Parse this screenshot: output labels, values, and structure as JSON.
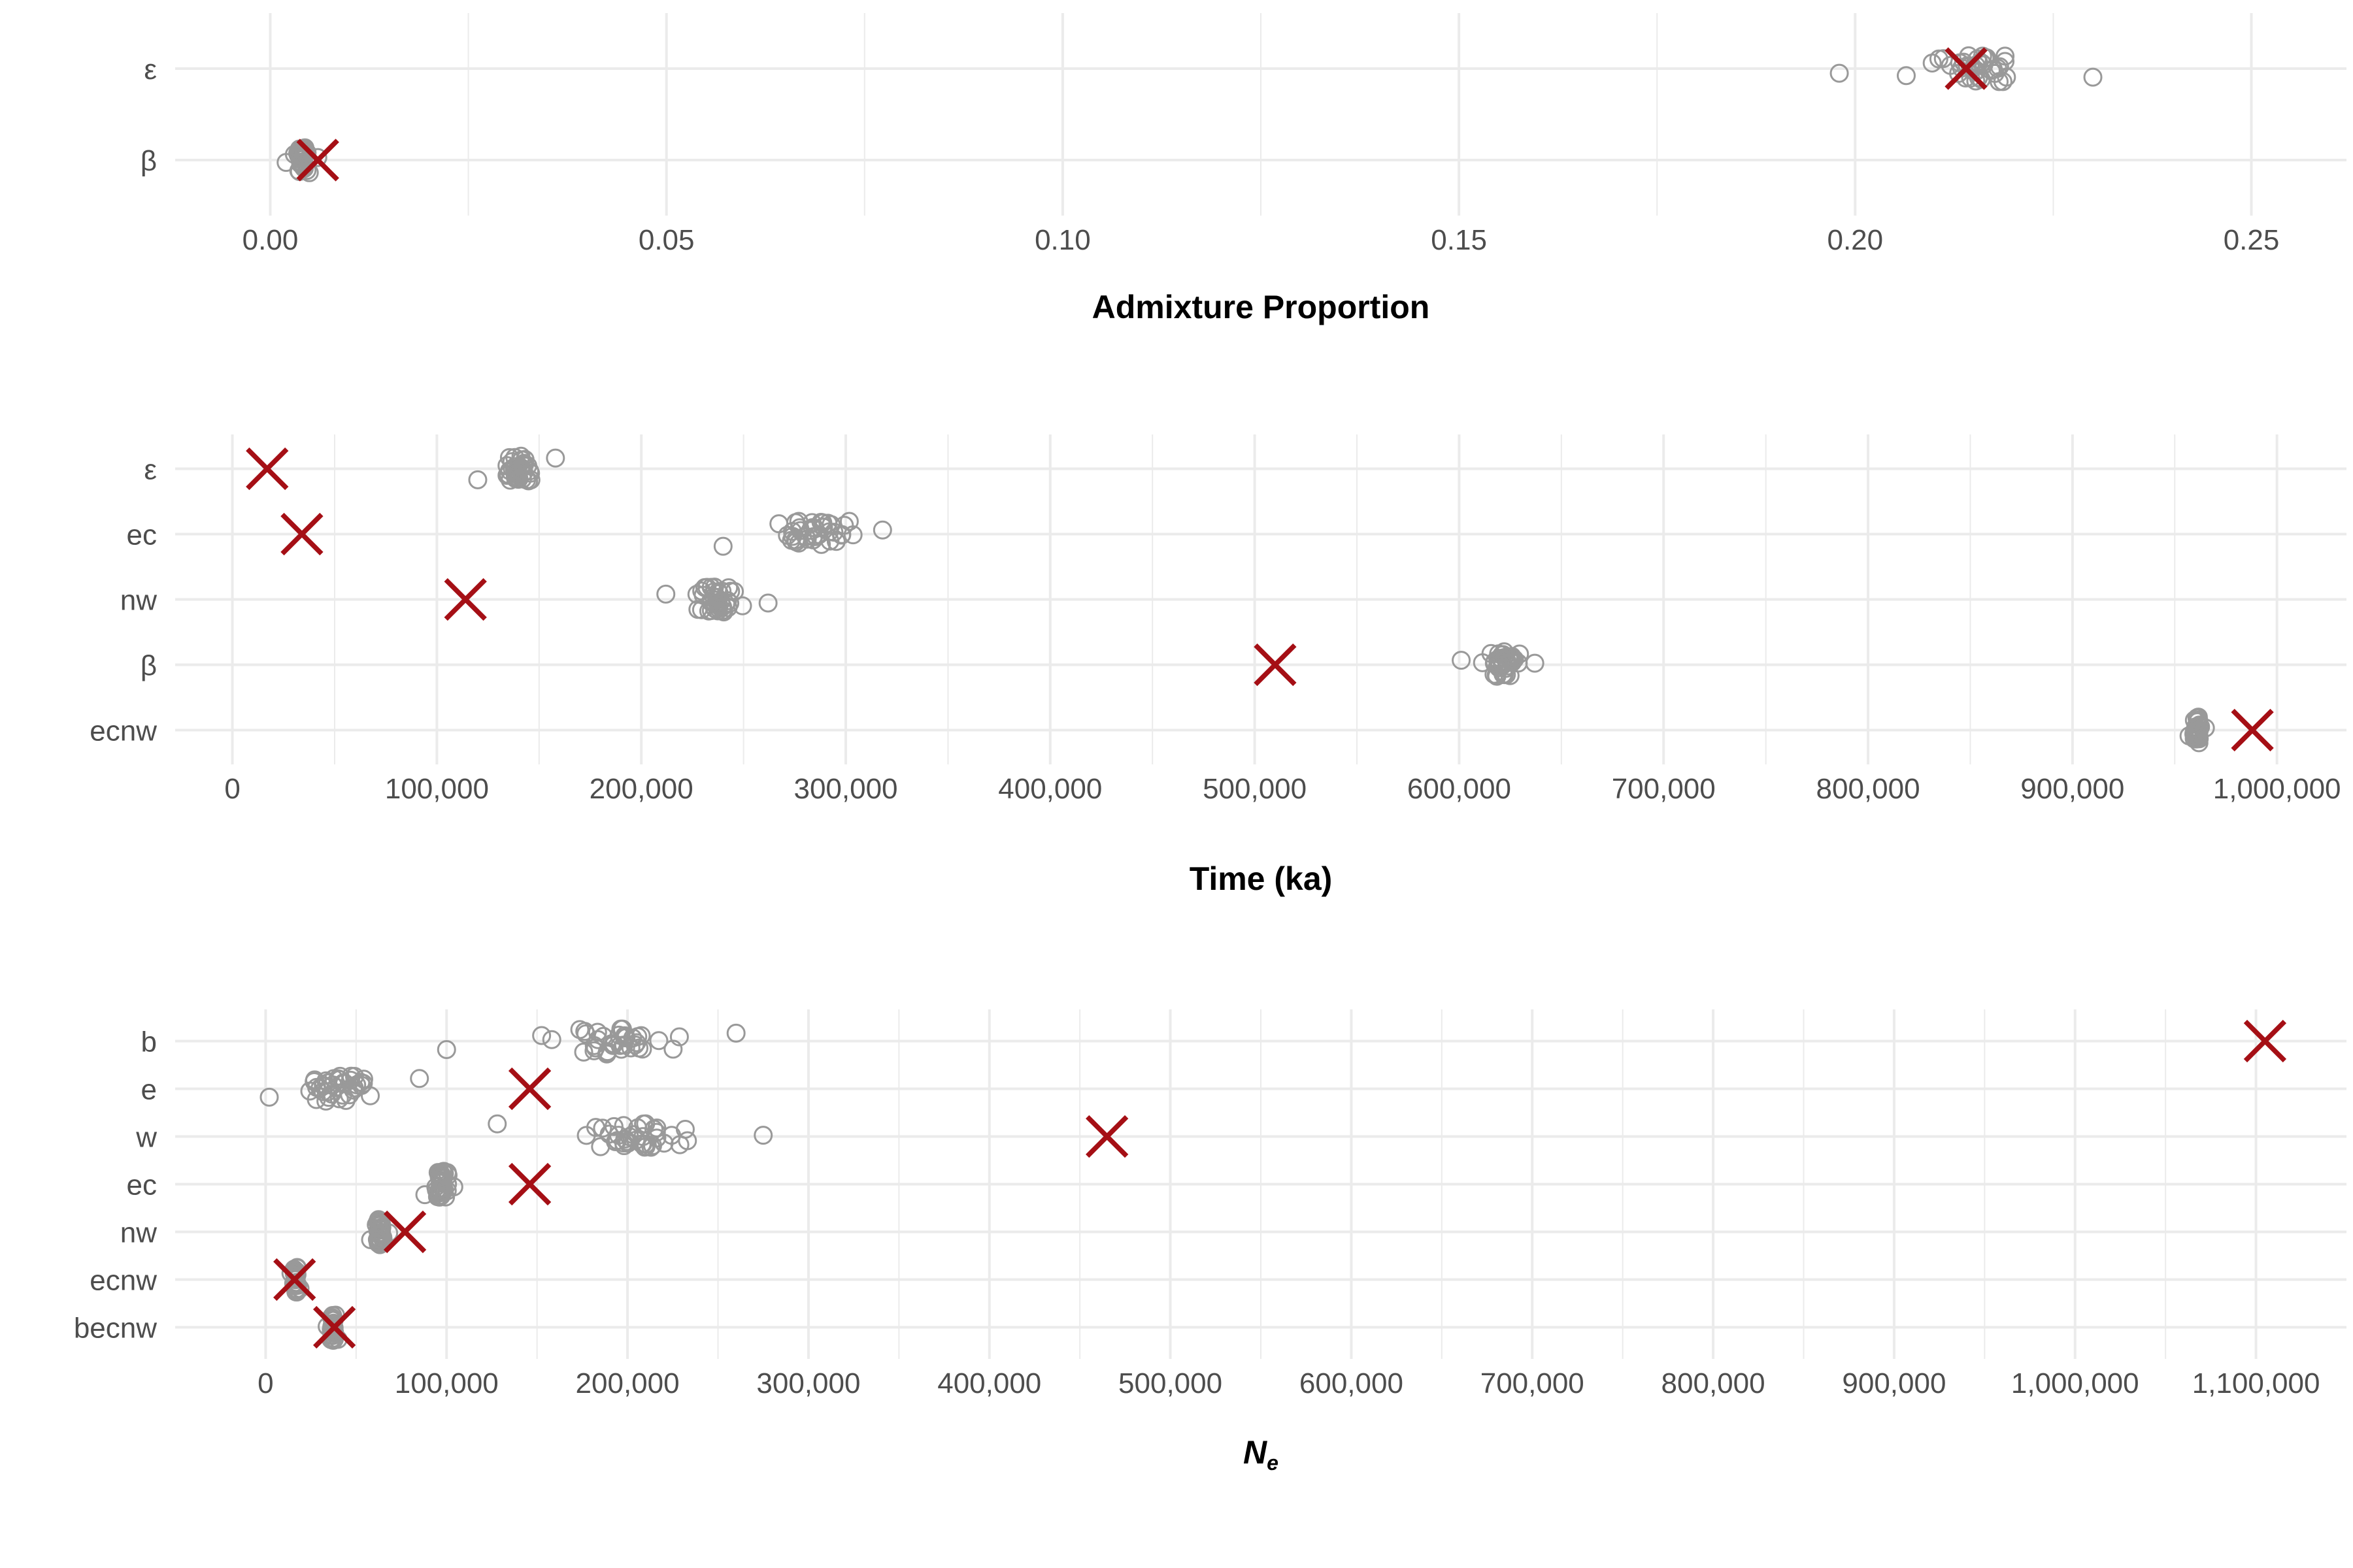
{
  "chart_data": [
    {
      "type": "scatter",
      "xlabel": "Admixture Proportion",
      "xlim": [
        -0.012,
        0.262
      ],
      "x_ticks": [
        0.0,
        0.05,
        0.1,
        0.15,
        0.2,
        0.25
      ],
      "x_tick_labels": [
        "0.00",
        "0.05",
        "0.10",
        "0.15",
        "0.20",
        "0.25"
      ],
      "categories": [
        "ε",
        "β"
      ],
      "grid": true,
      "colors": {
        "replicates": "#999999",
        "estimate": "#a50f15"
      },
      "series": [
        {
          "category": "ε",
          "estimate": 0.214,
          "replicates": {
            "min": 0.198,
            "max": 0.23,
            "center": 0.215,
            "n": 40
          }
        },
        {
          "category": "β",
          "estimate": 0.006,
          "replicates": {
            "min": 0.002,
            "max": 0.006,
            "center": 0.004,
            "n": 40
          }
        }
      ]
    },
    {
      "type": "scatter",
      "xlabel": "Time (ka)",
      "xlim": [
        -28000,
        1034000
      ],
      "x_ticks": [
        0,
        100000,
        200000,
        300000,
        400000,
        500000,
        600000,
        700000,
        800000,
        900000,
        1000000
      ],
      "x_tick_labels": [
        "0",
        "100,000",
        "200,000",
        "300,000",
        "400,000",
        "500,000",
        "600,000",
        "700,000",
        "800,000",
        "900,000",
        "1,000,000"
      ],
      "categories": [
        "ε",
        "ec",
        "nw",
        "β",
        "ecnw"
      ],
      "grid": true,
      "colors": {
        "replicates": "#999999",
        "estimate": "#a50f15"
      },
      "series": [
        {
          "category": "ε",
          "estimate": 17000,
          "replicates": {
            "min": 120000,
            "max": 158000,
            "center": 140000,
            "n": 40
          }
        },
        {
          "category": "ec",
          "estimate": 34000,
          "replicates": {
            "min": 240000,
            "max": 318000,
            "center": 285000,
            "n": 40
          }
        },
        {
          "category": "nw",
          "estimate": 114000,
          "replicates": {
            "min": 212000,
            "max": 262000,
            "center": 237000,
            "n": 40
          }
        },
        {
          "category": "β",
          "estimate": 510000,
          "replicates": {
            "min": 601000,
            "max": 637000,
            "center": 622000,
            "n": 40
          }
        },
        {
          "category": "ecnw",
          "estimate": 988000,
          "replicates": {
            "min": 957000,
            "max": 965000,
            "center": 961000,
            "n": 40
          }
        }
      ]
    },
    {
      "type": "scatter",
      "xlabel": "Nₑ",
      "xlim": [
        -50000,
        1150000
      ],
      "x_ticks": [
        0,
        100000,
        200000,
        300000,
        400000,
        500000,
        600000,
        700000,
        800000,
        900000,
        1000000,
        1100000
      ],
      "x_tick_labels": [
        "0",
        "100,000",
        "200,000",
        "300,000",
        "400,000",
        "500,000",
        "600,000",
        "700,000",
        "800,000",
        "900,000",
        "1,000,000",
        "1,100,000"
      ],
      "categories": [
        "b",
        "e",
        "w",
        "ec",
        "nw",
        "ecnw",
        "becnw"
      ],
      "grid": true,
      "colors": {
        "replicates": "#999999",
        "estimate": "#a50f15"
      },
      "series": [
        {
          "category": "b",
          "estimate": 1105000,
          "replicates": {
            "min": 100000,
            "max": 260000,
            "center": 195000,
            "n": 40
          }
        },
        {
          "category": "e",
          "estimate": 146000,
          "replicates": {
            "min": 2000,
            "max": 85000,
            "center": 40000,
            "n": 40
          }
        },
        {
          "category": "w",
          "estimate": 465000,
          "replicates": {
            "min": 128000,
            "max": 275000,
            "center": 205000,
            "n": 40
          }
        },
        {
          "category": "ec",
          "estimate": 146000,
          "replicates": {
            "min": 88000,
            "max": 104000,
            "center": 97000,
            "n": 40
          }
        },
        {
          "category": "nw",
          "estimate": 77000,
          "replicates": {
            "min": 58000,
            "max": 68000,
            "center": 63000,
            "n": 40
          }
        },
        {
          "category": "ecnw",
          "estimate": 16000,
          "replicates": {
            "min": 14000,
            "max": 19000,
            "center": 16500,
            "n": 40
          }
        },
        {
          "category": "becnw",
          "estimate": 38000,
          "replicates": {
            "min": 34000,
            "max": 40000,
            "center": 37000,
            "n": 40
          }
        }
      ]
    }
  ]
}
